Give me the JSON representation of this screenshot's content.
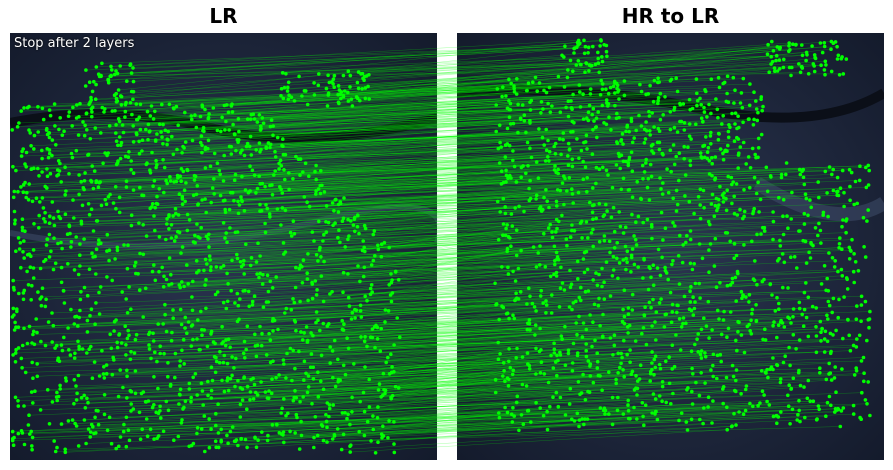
{
  "titles": {
    "left": "LR",
    "right": "HR to LR"
  },
  "annotation": "Stop after 2 layers",
  "colors": {
    "keypoint": "#00ff00",
    "match_line": "#00ff00",
    "background": "#1a2235"
  }
}
